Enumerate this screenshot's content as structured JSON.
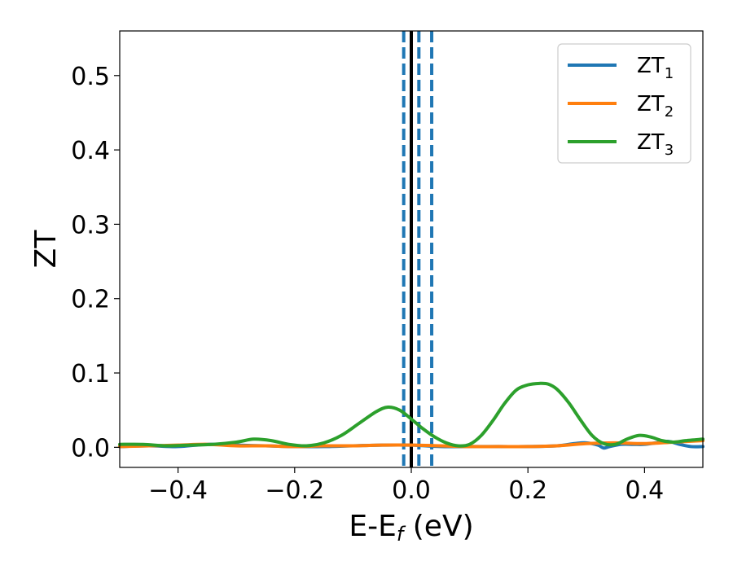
{
  "chart_data": {
    "type": "line",
    "xlabel": {
      "main": "E-E",
      "sub": "f",
      "unit": " (eV)"
    },
    "ylabel": "ZT",
    "xlim": [
      -0.5,
      0.5
    ],
    "ylim": [
      -0.027,
      0.56
    ],
    "xticks": [
      -0.4,
      -0.2,
      0.0,
      0.2,
      0.4
    ],
    "xtick_labels": [
      "−0.4",
      "−0.2",
      "0.0",
      "0.2",
      "0.4"
    ],
    "yticks": [
      0.0,
      0.1,
      0.2,
      0.3,
      0.4,
      0.5
    ],
    "ytick_labels": [
      "0.0",
      "0.1",
      "0.2",
      "0.3",
      "0.4",
      "0.5"
    ],
    "grid": false,
    "legend_position": "top-right",
    "vlines": [
      {
        "x": 0.0,
        "color": "#000000",
        "style": "solid"
      },
      {
        "x": -0.013,
        "color": "#1f77b4",
        "style": "dashed"
      },
      {
        "x": 0.013,
        "color": "#1f77b4",
        "style": "dashed"
      },
      {
        "x": 0.035,
        "color": "#1f77b4",
        "style": "dashed"
      }
    ],
    "series": [
      {
        "name": "ZT",
        "sub": "1",
        "color": "#1f77b4",
        "x": [
          -0.5,
          -0.45,
          -0.4,
          -0.35,
          -0.3,
          -0.25,
          -0.2,
          -0.15,
          -0.1,
          -0.05,
          0.0,
          0.05,
          0.1,
          0.15,
          0.2,
          0.25,
          0.28,
          0.3,
          0.32,
          0.33,
          0.34,
          0.36,
          0.38,
          0.4,
          0.42,
          0.44,
          0.46,
          0.48,
          0.5
        ],
        "y": [
          0.001,
          0.002,
          0.001,
          0.004,
          0.003,
          0.002,
          0.001,
          0.001,
          0.002,
          0.003,
          0.003,
          0.001,
          0.001,
          0.001,
          0.001,
          0.002,
          0.005,
          0.006,
          0.003,
          -0.001,
          0.001,
          0.004,
          0.004,
          0.004,
          0.006,
          0.008,
          0.004,
          0.001,
          0.001
        ]
      },
      {
        "name": "ZT",
        "sub": "2",
        "color": "#ff7f0e",
        "x": [
          -0.5,
          -0.45,
          -0.4,
          -0.35,
          -0.3,
          -0.25,
          -0.2,
          -0.15,
          -0.1,
          -0.05,
          0.0,
          0.05,
          0.1,
          0.15,
          0.2,
          0.25,
          0.3,
          0.35,
          0.4,
          0.45,
          0.5
        ],
        "y": [
          0.001,
          0.002,
          0.003,
          0.004,
          0.002,
          0.002,
          0.001,
          0.002,
          0.002,
          0.003,
          0.003,
          0.002,
          0.001,
          0.001,
          0.001,
          0.002,
          0.005,
          0.006,
          0.005,
          0.007,
          0.009
        ]
      },
      {
        "name": "ZT",
        "sub": "3",
        "color": "#2ca02c",
        "x": [
          -0.5,
          -0.46,
          -0.42,
          -0.38,
          -0.34,
          -0.3,
          -0.27,
          -0.24,
          -0.21,
          -0.18,
          -0.15,
          -0.12,
          -0.09,
          -0.06,
          -0.04,
          -0.02,
          0.0,
          0.02,
          0.04,
          0.06,
          0.08,
          0.1,
          0.12,
          0.14,
          0.16,
          0.18,
          0.2,
          0.22,
          0.235,
          0.25,
          0.27,
          0.29,
          0.31,
          0.33,
          0.35,
          0.37,
          0.39,
          0.41,
          0.43,
          0.45,
          0.47,
          0.5
        ],
        "y": [
          0.004,
          0.004,
          0.002,
          0.003,
          0.004,
          0.007,
          0.011,
          0.009,
          0.004,
          0.002,
          0.006,
          0.016,
          0.032,
          0.048,
          0.054,
          0.05,
          0.038,
          0.025,
          0.014,
          0.006,
          0.002,
          0.004,
          0.016,
          0.036,
          0.059,
          0.077,
          0.084,
          0.086,
          0.085,
          0.078,
          0.06,
          0.037,
          0.016,
          0.005,
          0.004,
          0.011,
          0.016,
          0.014,
          0.009,
          0.007,
          0.009,
          0.011
        ]
      }
    ]
  }
}
